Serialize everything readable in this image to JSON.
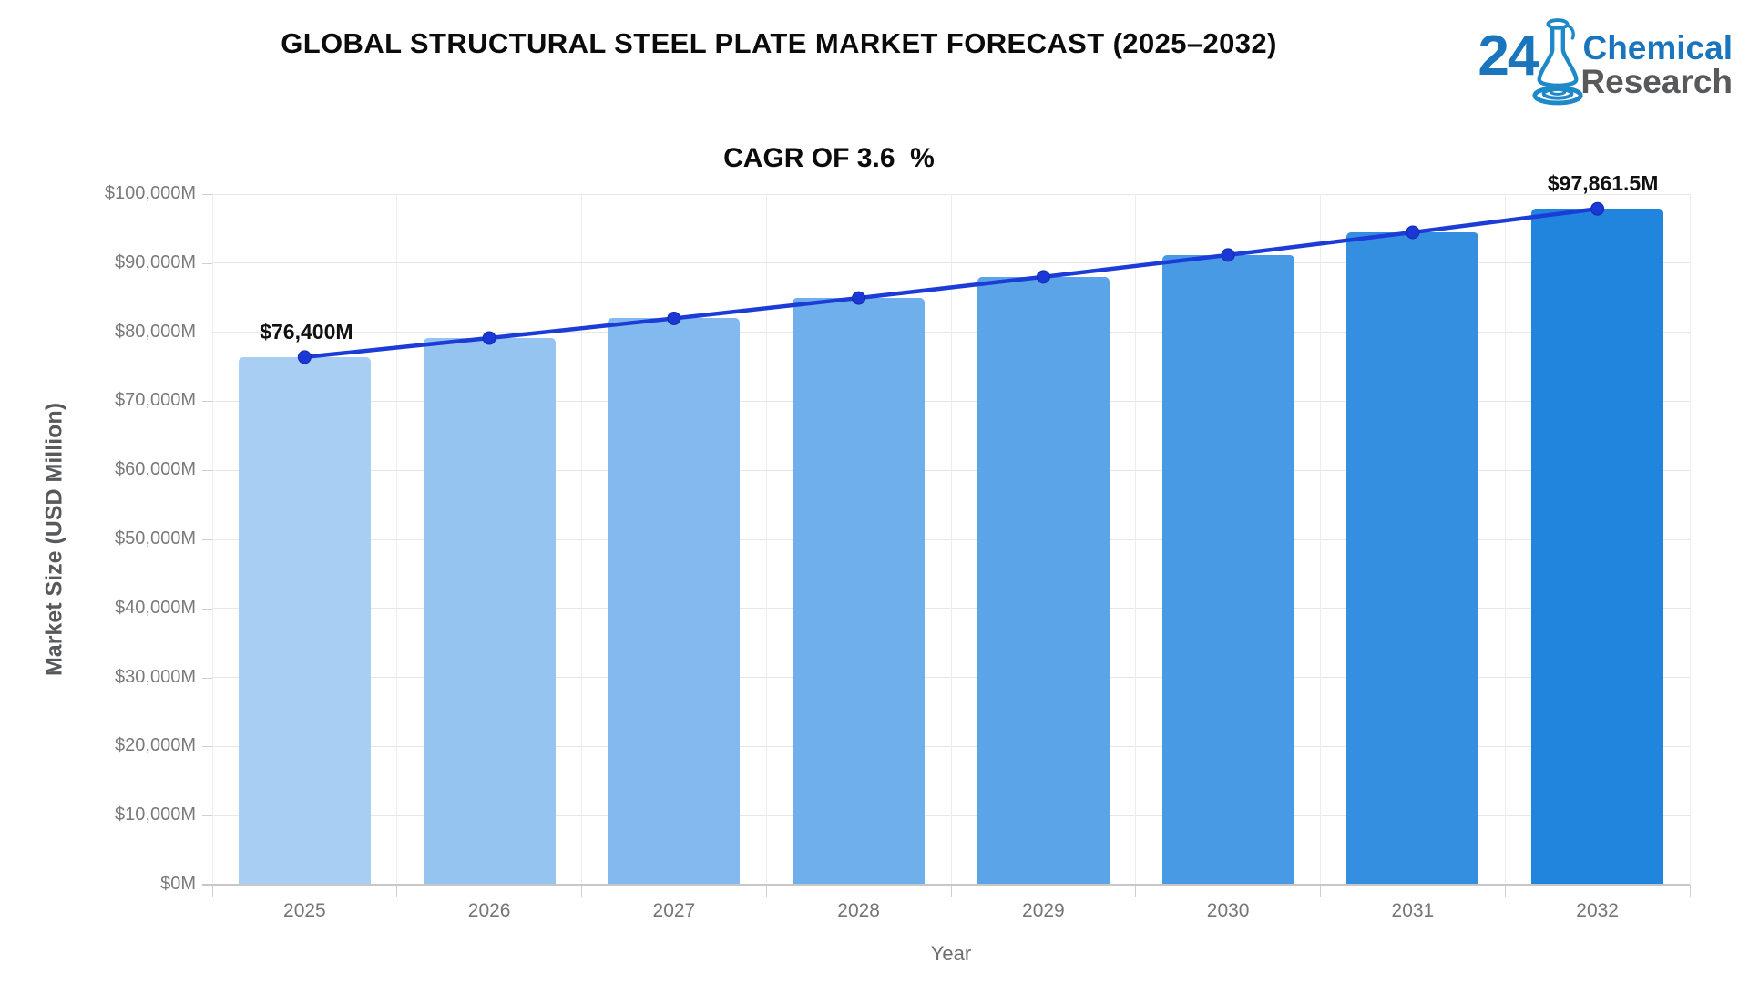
{
  "header": {
    "title": "GLOBAL STRUCTURAL STEEL PLATE MARKET FORECAST (2025–2032)",
    "subtitle": "CAGR OF 3.6  %"
  },
  "logo": {
    "number": "24",
    "word1": "Chemical",
    "word2": "Research",
    "blue": "#1b75bc",
    "gray": "#58595b",
    "flask_blue": "#1e88c9"
  },
  "chart_data": {
    "type": "bar",
    "categories": [
      "2025",
      "2026",
      "2027",
      "2028",
      "2029",
      "2030",
      "2031",
      "2032"
    ],
    "values": [
      76400,
      79150,
      82000,
      84952,
      88010,
      91179,
      94461,
      97861.5
    ],
    "series": [
      {
        "name": "Market Size bars",
        "type": "bar",
        "values": [
          76400,
          79150,
          82000,
          84952,
          88010,
          91179,
          94461,
          97861.5
        ]
      },
      {
        "name": "Trend line",
        "type": "line",
        "values": [
          76400,
          79150,
          82000,
          84952,
          88010,
          91179,
          94461,
          97861.5
        ]
      }
    ],
    "title": "GLOBAL STRUCTURAL STEEL PLATE MARKET FORECAST (2025–2032)",
    "subtitle": "CAGR OF 3.6  %",
    "xlabel": "Year",
    "ylabel": "Market Size (USD Million)",
    "ylim": [
      0,
      100000
    ],
    "ytick_labels": [
      "$0M",
      "$10,000M",
      "$20,000M",
      "$30,000M",
      "$40,000M",
      "$50,000M",
      "$60,000M",
      "$70,000M",
      "$80,000M",
      "$90,000M",
      "$100,000M"
    ],
    "grid": true,
    "legend": "none",
    "bar_colors": [
      "#a9cef4",
      "#96c4f1",
      "#82b9ee",
      "#6fafeb",
      "#5ba4e7",
      "#489ae4",
      "#348fe1",
      "#2185de"
    ],
    "line_color": "#1c3cd8",
    "marker_color": "#1b38d6",
    "annotations": {
      "first": "$76,400M",
      "last": "$97,861.5M"
    }
  }
}
